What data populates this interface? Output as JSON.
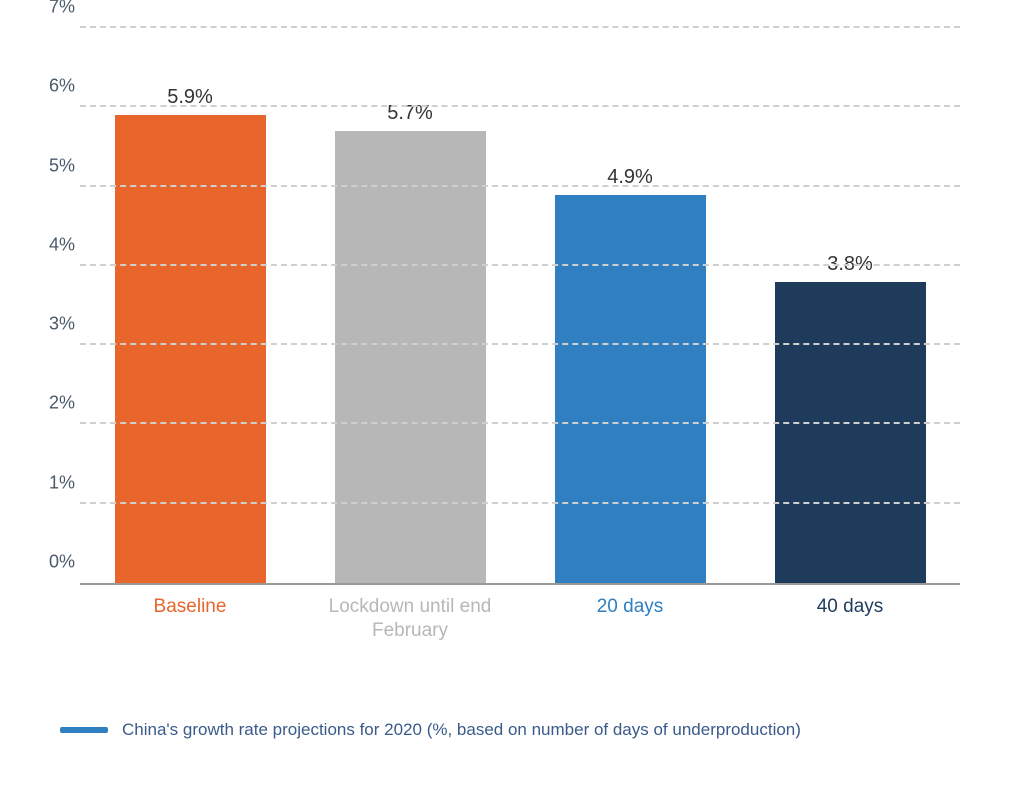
{
  "chart": {
    "type": "bar",
    "background_color": "#ffffff",
    "grid_color": "#cfcfcf",
    "grid_style": "dashed",
    "axis_color": "#999999",
    "ylim": [
      0,
      7
    ],
    "ytick_step": 1,
    "ytick_suffix": "%",
    "ytick_fontsize": 18,
    "ytick_color": "#4a5a6a",
    "yticks": [
      {
        "value": 0,
        "label": "0%"
      },
      {
        "value": 1,
        "label": "1%"
      },
      {
        "value": 2,
        "label": "2%"
      },
      {
        "value": 3,
        "label": "3%"
      },
      {
        "value": 4,
        "label": "4%"
      },
      {
        "value": 5,
        "label": "5%"
      },
      {
        "value": 6,
        "label": "6%"
      },
      {
        "value": 7,
        "label": "7%"
      }
    ],
    "value_label_fontsize": 20,
    "value_label_color": "#333333",
    "xlabel_fontsize": 19,
    "bar_width": 0.78,
    "bars": [
      {
        "category": "Baseline",
        "value": 5.9,
        "value_label": "5.9%",
        "color": "#e8652b",
        "label_color": "#e8652b"
      },
      {
        "category": "Lockdown until end February",
        "value": 5.7,
        "value_label": "5.7%",
        "color": "#b7b7b7",
        "label_color": "#b7b7b7"
      },
      {
        "category": "20 days",
        "value": 4.9,
        "value_label": "4.9%",
        "color": "#2f7fc1",
        "label_color": "#2f7fc1"
      },
      {
        "category": "40 days",
        "value": 3.8,
        "value_label": "3.8%",
        "color": "#1f3b5c",
        "label_color": "#1f3b5c"
      }
    ],
    "legend": {
      "text": "China's growth rate projections for 2020 (%, based on number of days of underproduction)",
      "swatch_color": "#2f7fc1",
      "text_color": "#3a5a8a",
      "fontsize": 17
    }
  }
}
